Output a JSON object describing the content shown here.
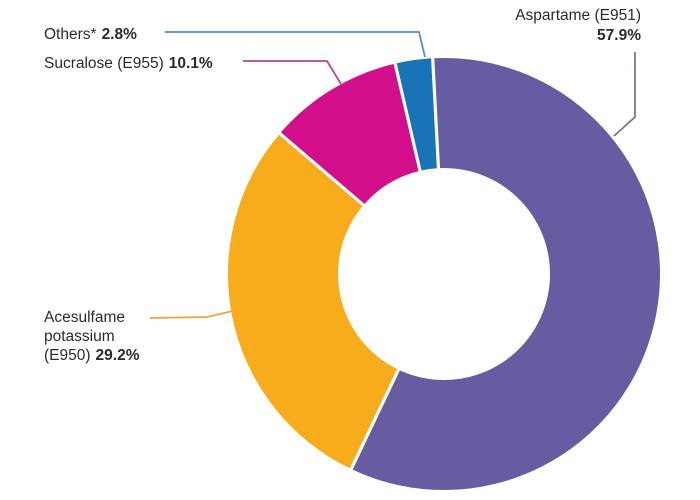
{
  "chart_data": {
    "type": "pie",
    "subtype": "donut",
    "title": "",
    "categories": [
      "Aspartame (E951)",
      "Acesulfame potassium (E950)",
      "Sucralose (E955)",
      "Others*"
    ],
    "values": [
      57.9,
      29.2,
      10.1,
      2.8
    ],
    "unit": "%",
    "colors": [
      "#675CA1",
      "#F9AC1B",
      "#D30E8B",
      "#1873B7"
    ],
    "start_angle_deg": -3,
    "clockwise": true,
    "legend_position": "callout-labels",
    "background": "#FFFFFF"
  },
  "labels": {
    "aspartame": {
      "name": "Aspartame (E951)",
      "value": "57.9%",
      "leader_color": "#73708E"
    },
    "others": {
      "name": "Others*",
      "value": "2.8%",
      "leader_color": "#4E8EC3"
    },
    "sucralose": {
      "name": "Sucralose (E955)",
      "value": "10.1%",
      "leader_color": "#C33E8D"
    },
    "acesulfame": {
      "name_line1": "Acesulfame",
      "name_line2": "potassium",
      "name_line3": "(E950)",
      "value": "29.2%",
      "leader_color": "#EFA53C"
    }
  },
  "text_color": "#2B2B2B"
}
